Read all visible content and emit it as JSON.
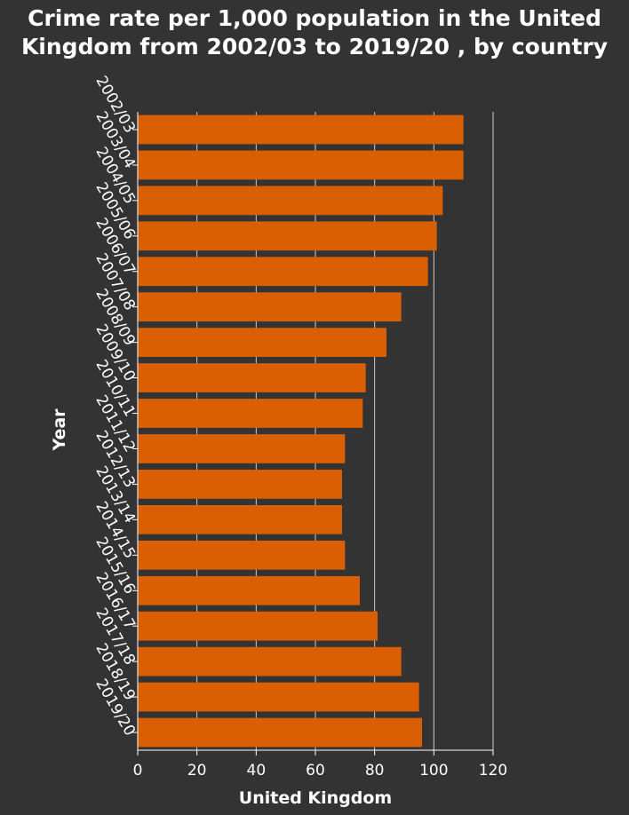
{
  "chart_data": {
    "type": "bar",
    "orientation": "horizontal",
    "title_lines": [
      "Crime rate per 1,000 population in the United",
      "Kingdom from 2002/03 to 2019/20 , by country"
    ],
    "xlabel": "United Kingdom",
    "ylabel": "Year",
    "xlim": [
      0,
      120
    ],
    "x_ticks": [
      0,
      20,
      40,
      60,
      80,
      100,
      120
    ],
    "grid": "vertical gridlines",
    "categories": [
      "2002/03",
      "2003/04",
      "2004/05",
      "2005/06",
      "2006/07",
      "2007/08",
      "2008/09",
      "2009/10",
      "2010/11",
      "2011/12",
      "2012/13",
      "2013/14",
      "2014/15",
      "2015/16",
      "2016/17",
      "2017/18",
      "2018/19",
      "2019/20"
    ],
    "series": [
      {
        "values": [
          110,
          110,
          103,
          101,
          98,
          89,
          84,
          77,
          76,
          70,
          69,
          69,
          70,
          75,
          81,
          89,
          95,
          96
        ]
      }
    ],
    "colors": {
      "bar": "#d95f02",
      "background": "#333333",
      "text": "#ffffff",
      "grid": "#cccccc"
    }
  }
}
